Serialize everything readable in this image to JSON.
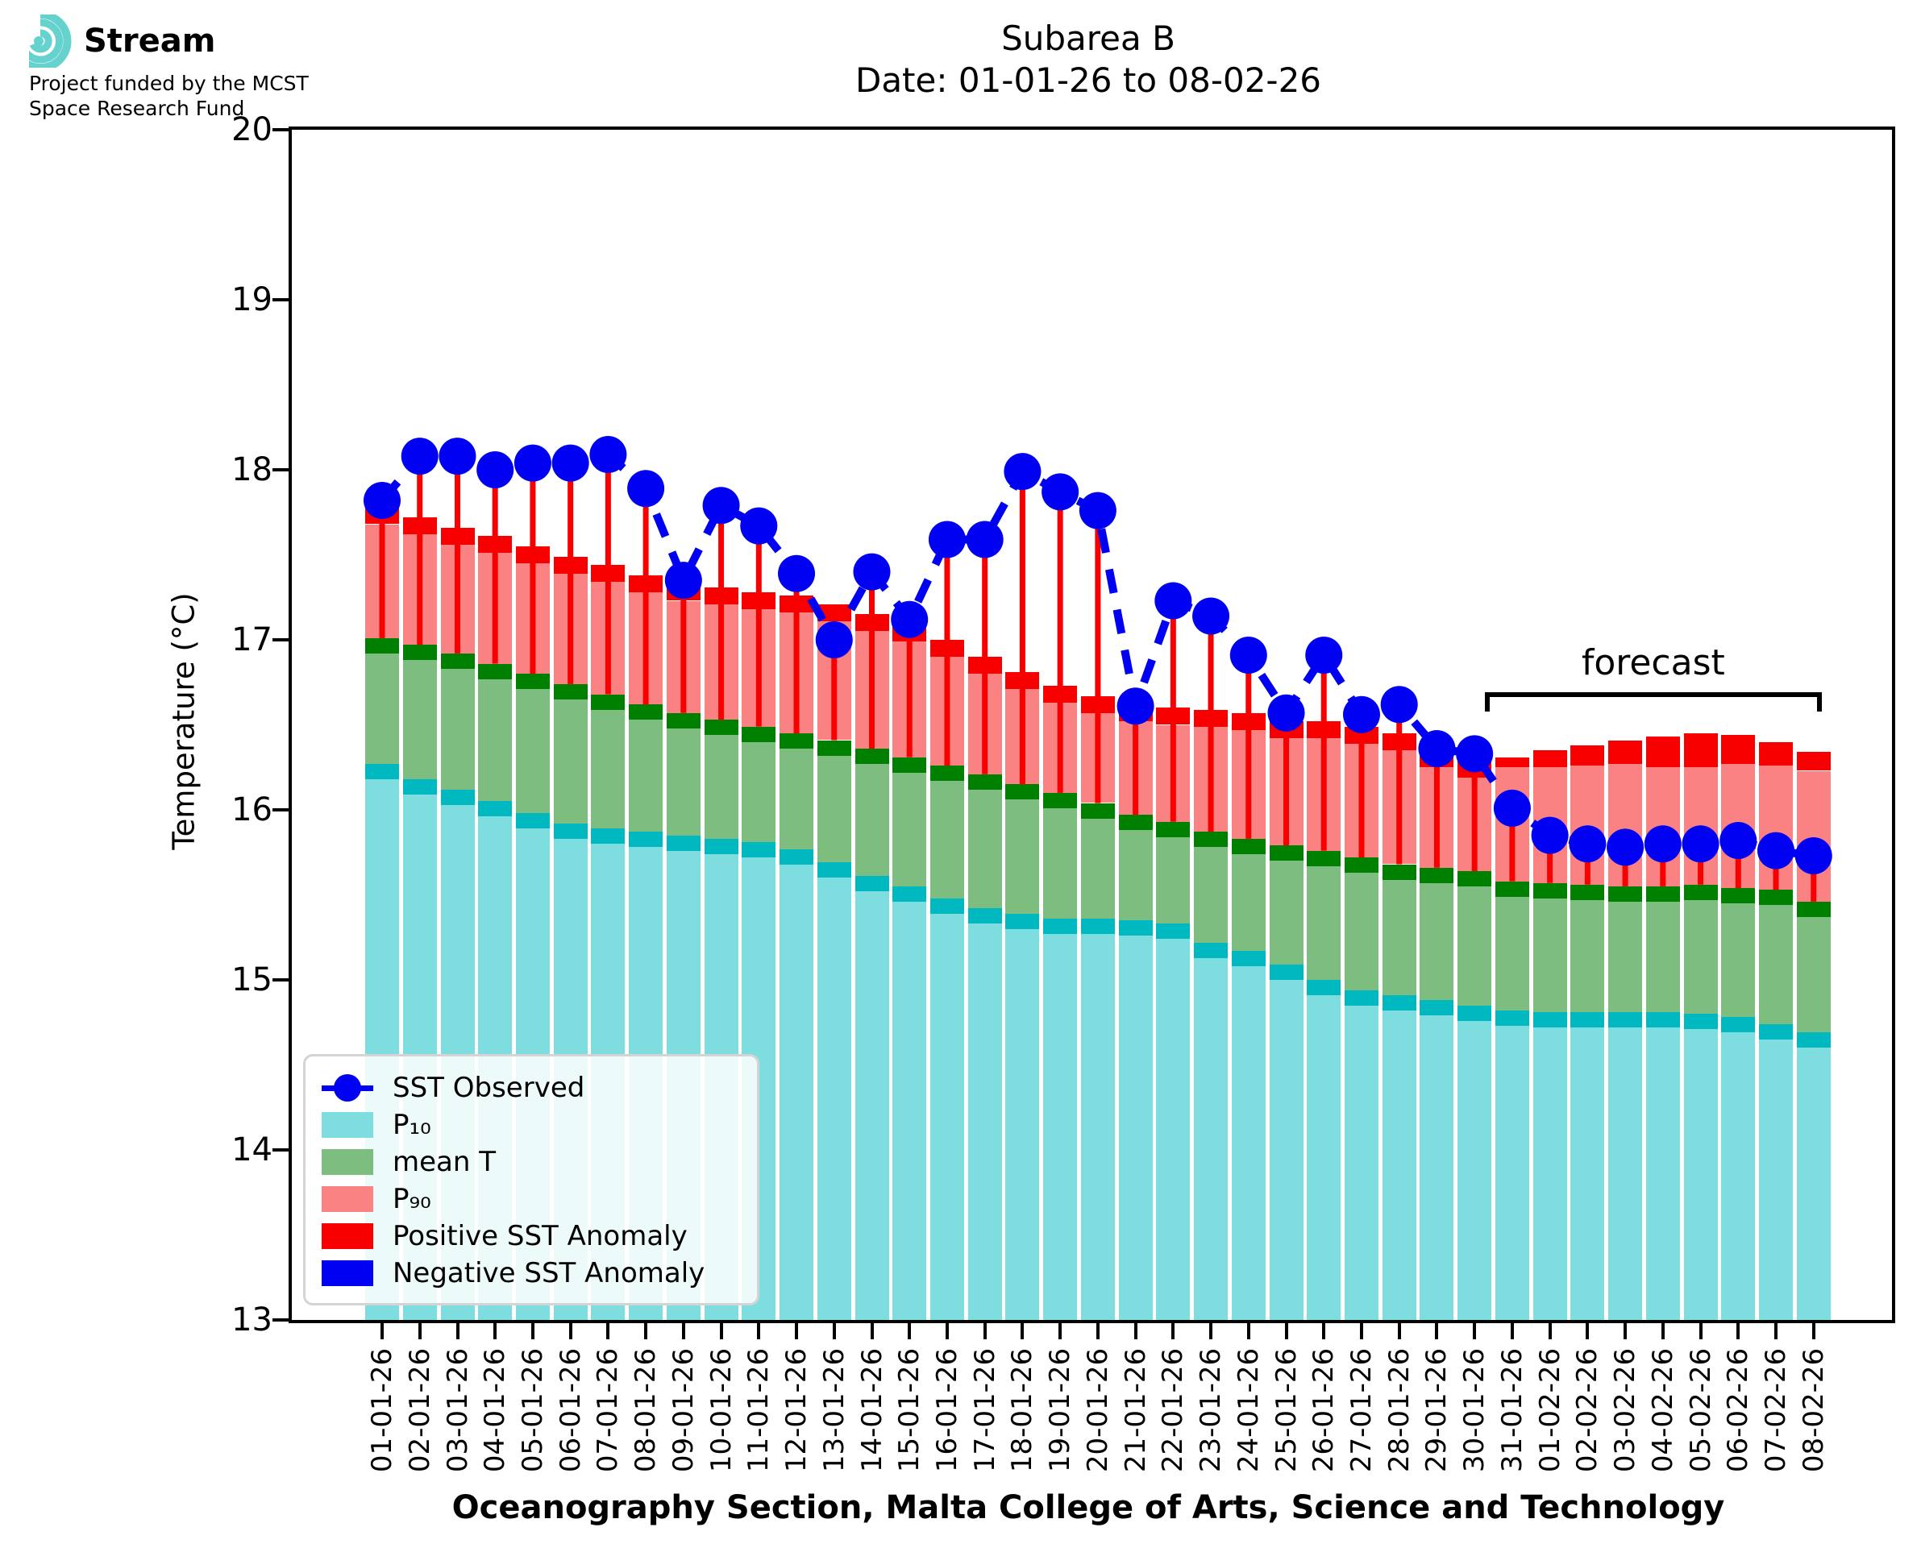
{
  "logo": {
    "brand": "Stream",
    "subtitle_line1": "Project funded by the MCST",
    "subtitle_line2": "Space Research Fund"
  },
  "title": {
    "line1": "Subarea B",
    "line2": "Date: 01-01-26 to 08-02-26"
  },
  "ylabel": "Temperature (°C)",
  "footer": "Oceanography Section, Malta College of Arts, Science and Technology",
  "forecast": {
    "label": "forecast",
    "start_index": 30,
    "end_index": 38
  },
  "legend": [
    {
      "label": "SST Observed",
      "type": "line-dot",
      "color": "#0000f2"
    },
    {
      "label": "P₁₀",
      "type": "patch",
      "color": "#7eddde"
    },
    {
      "label": "mean T",
      "type": "patch",
      "color": "#7ebd80"
    },
    {
      "label": "P₉₀",
      "type": "patch",
      "color": "#fa8282"
    },
    {
      "label": "Positive SST Anomaly",
      "type": "patch",
      "color": "#f80000"
    },
    {
      "label": "Negative SST Anomaly",
      "type": "patch",
      "color": "#0000f2"
    }
  ],
  "colors": {
    "sst_line": "#0000f2",
    "sst_dot": "#0000f2",
    "p10_fill": "#7eddde",
    "p10_cap": "#00b9c0",
    "mean_fill": "#7ebd80",
    "mean_cap": "#008000",
    "p90_fill": "#fa8282",
    "p90_cap": "#f80000",
    "anomaly_positive": "#f80000",
    "anomaly_negative": "#0000f2",
    "logo_teal": "#66d2cd"
  },
  "chart_data": {
    "type": "bar",
    "title": "Subarea B  Date: 01-01-26 to 08-02-26",
    "xlabel": "Oceanography Section, Malta College of Arts, Science and Technology",
    "ylabel": "Temperature (°C)",
    "ylim": [
      13,
      20
    ],
    "yticks": [
      13,
      14,
      15,
      16,
      17,
      18,
      19,
      20
    ],
    "grid": false,
    "legend_position": "lower-left",
    "categories": [
      "01-01-26",
      "02-01-26",
      "03-01-26",
      "04-01-26",
      "05-01-26",
      "06-01-26",
      "07-01-26",
      "08-01-26",
      "09-01-26",
      "10-01-26",
      "11-01-26",
      "12-01-26",
      "13-01-26",
      "14-01-26",
      "15-01-26",
      "16-01-26",
      "17-01-26",
      "18-01-26",
      "19-01-26",
      "20-01-26",
      "21-01-26",
      "22-01-26",
      "23-01-26",
      "24-01-26",
      "25-01-26",
      "26-01-26",
      "27-01-26",
      "28-01-26",
      "29-01-26",
      "30-01-26",
      "31-01-26",
      "01-02-26",
      "02-02-26",
      "03-02-26",
      "04-02-26",
      "05-02-26",
      "06-02-26",
      "07-02-26",
      "08-02-26"
    ],
    "series": {
      "p10": [
        16.27,
        16.18,
        16.12,
        16.05,
        15.98,
        15.92,
        15.89,
        15.87,
        15.85,
        15.83,
        15.81,
        15.77,
        15.69,
        15.61,
        15.55,
        15.48,
        15.42,
        15.39,
        15.36,
        15.36,
        15.35,
        15.33,
        15.22,
        15.17,
        15.09,
        15.0,
        14.94,
        14.91,
        14.88,
        14.85,
        14.82,
        14.81,
        14.81,
        14.81,
        14.81,
        14.8,
        14.78,
        14.74,
        14.69
      ],
      "mean_t": [
        17.01,
        16.97,
        16.92,
        16.86,
        16.8,
        16.74,
        16.68,
        16.62,
        16.57,
        16.53,
        16.49,
        16.45,
        16.41,
        16.36,
        16.31,
        16.26,
        16.21,
        16.15,
        16.1,
        16.04,
        15.97,
        15.93,
        15.87,
        15.83,
        15.79,
        15.76,
        15.72,
        15.68,
        15.66,
        15.64,
        15.58,
        15.57,
        15.56,
        15.55,
        15.55,
        15.56,
        15.54,
        15.53,
        15.46
      ],
      "p90": [
        17.68,
        17.62,
        17.56,
        17.51,
        17.45,
        17.39,
        17.34,
        17.28,
        17.23,
        17.21,
        17.18,
        17.16,
        17.11,
        17.05,
        16.99,
        16.9,
        16.8,
        16.71,
        16.63,
        16.57,
        16.52,
        16.5,
        16.49,
        16.47,
        16.42,
        16.42,
        16.39,
        16.35,
        16.25,
        16.19,
        16.25,
        16.25,
        16.26,
        16.27,
        16.25,
        16.25,
        16.27,
        16.26,
        16.23
      ],
      "p90_cap_top": [
        17.78,
        17.72,
        17.66,
        17.61,
        17.55,
        17.49,
        17.44,
        17.38,
        17.33,
        17.31,
        17.28,
        17.26,
        17.21,
        17.15,
        17.09,
        17.0,
        16.9,
        16.81,
        16.73,
        16.67,
        16.62,
        16.6,
        16.59,
        16.57,
        16.52,
        16.52,
        16.49,
        16.45,
        16.35,
        16.29,
        16.31,
        16.35,
        16.38,
        16.41,
        16.43,
        16.45,
        16.44,
        16.4,
        16.34
      ],
      "sst_observed": [
        17.82,
        18.08,
        18.08,
        18.0,
        18.04,
        18.04,
        18.09,
        17.89,
        17.35,
        17.79,
        17.67,
        17.39,
        17.0,
        17.4,
        17.12,
        17.59,
        17.59,
        17.99,
        17.87,
        17.76,
        16.61,
        17.23,
        17.14,
        16.91,
        16.57,
        16.91,
        16.56,
        16.62,
        16.36,
        16.33,
        16.01,
        15.85,
        15.8,
        15.78,
        15.8,
        15.8,
        15.82,
        15.76,
        15.73
      ]
    },
    "cap_thickness_deg": {
      "p10": 0.09,
      "mean": 0.09
    }
  }
}
